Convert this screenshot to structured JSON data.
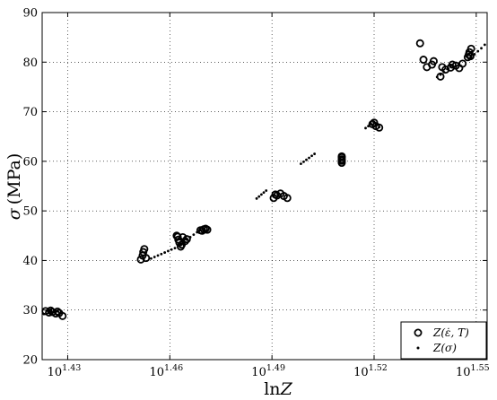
{
  "chart_data": {
    "type": "scatter",
    "title": "",
    "xlabel": "ln Z",
    "xlabel_parts": {
      "prefix": "ln",
      "var": "Z"
    },
    "ylabel": "σ (MPa)",
    "ylabel_parts": {
      "var": "σ",
      "unit": "(MPa)"
    },
    "xscale": "log",
    "xlim_exponent": [
      1.4225,
      1.5532
    ],
    "ylim": [
      20,
      90
    ],
    "x_ticks": [
      {
        "base": "10",
        "exp": "1.43",
        "value": 1.43
      },
      {
        "base": "10",
        "exp": "1.46",
        "value": 1.46
      },
      {
        "base": "10",
        "exp": "1.49",
        "value": 1.49
      },
      {
        "base": "10",
        "exp": "1.52",
        "value": 1.52
      },
      {
        "base": "10",
        "exp": "1.55",
        "value": 1.55
      }
    ],
    "y_ticks": [
      "20",
      "30",
      "40",
      "50",
      "60",
      "70",
      "80",
      "90"
    ],
    "grid": true,
    "legend_position": "bottom-right",
    "series": [
      {
        "name": "Z(ε̇, T)",
        "marker": "open-circle",
        "points": [
          [
            1.4235,
            29.8
          ],
          [
            1.4245,
            29.5
          ],
          [
            1.4255,
            29.6
          ],
          [
            1.4265,
            29.3
          ],
          [
            1.4275,
            29.4
          ],
          [
            1.4285,
            28.8
          ],
          [
            1.425,
            29.9
          ],
          [
            1.427,
            29.7
          ],
          [
            1.4515,
            40.2
          ],
          [
            1.452,
            41.0
          ],
          [
            1.4525,
            42.3
          ],
          [
            1.453,
            40.5
          ],
          [
            1.4522,
            41.7
          ],
          [
            1.462,
            45.0
          ],
          [
            1.4625,
            44.2
          ],
          [
            1.4628,
            43.6
          ],
          [
            1.4632,
            42.8
          ],
          [
            1.4638,
            44.7
          ],
          [
            1.4645,
            43.9
          ],
          [
            1.465,
            44.3
          ],
          [
            1.4623,
            44.8
          ],
          [
            1.4635,
            43.2
          ],
          [
            1.469,
            46.1
          ],
          [
            1.47,
            46.3
          ],
          [
            1.471,
            46.2
          ],
          [
            1.4695,
            46.0
          ],
          [
            1.4705,
            46.4
          ],
          [
            1.4905,
            52.6
          ],
          [
            1.4915,
            53.1
          ],
          [
            1.4925,
            53.5
          ],
          [
            1.4935,
            53.0
          ],
          [
            1.4945,
            52.6
          ],
          [
            1.491,
            53.3
          ],
          [
            1.5105,
            59.7
          ],
          [
            1.5105,
            60.4
          ],
          [
            1.5105,
            61.0
          ],
          [
            1.5105,
            60.8
          ],
          [
            1.5105,
            60.1
          ],
          [
            1.5195,
            67.5
          ],
          [
            1.5205,
            67.1
          ],
          [
            1.5215,
            66.8
          ],
          [
            1.52,
            67.8
          ],
          [
            1.5335,
            83.8
          ],
          [
            1.5345,
            80.5
          ],
          [
            1.5355,
            79.0
          ],
          [
            1.537,
            79.5
          ],
          [
            1.5375,
            80.2
          ],
          [
            1.5395,
            77.1
          ],
          [
            1.54,
            79.0
          ],
          [
            1.541,
            78.5
          ],
          [
            1.543,
            79.5
          ],
          [
            1.544,
            79.3
          ],
          [
            1.545,
            78.8
          ],
          [
            1.546,
            79.7
          ],
          [
            1.5475,
            81.0
          ],
          [
            1.548,
            82.0
          ],
          [
            1.5485,
            82.7
          ],
          [
            1.5478,
            81.5
          ],
          [
            1.5483,
            81.2
          ],
          [
            1.5425,
            78.9
          ]
        ]
      },
      {
        "name": "Z(σ)",
        "marker": "dot",
        "points": [
          [
            1.423,
            29.2
          ],
          [
            1.425,
            29.6
          ],
          [
            1.427,
            29.8
          ],
          [
            1.4545,
            40.4
          ],
          [
            1.4555,
            40.7
          ],
          [
            1.4565,
            41.0
          ],
          [
            1.4575,
            41.3
          ],
          [
            1.4585,
            41.6
          ],
          [
            1.4595,
            41.9
          ],
          [
            1.4605,
            42.2
          ],
          [
            1.4615,
            42.5
          ],
          [
            1.463,
            43.2
          ],
          [
            1.464,
            43.7
          ],
          [
            1.465,
            44.2
          ],
          [
            1.466,
            44.7
          ],
          [
            1.467,
            45.2
          ],
          [
            1.468,
            45.7
          ],
          [
            1.469,
            46.1
          ],
          [
            1.47,
            46.3
          ],
          [
            1.4855,
            52.5
          ],
          [
            1.4862,
            52.9
          ],
          [
            1.4869,
            53.3
          ],
          [
            1.4876,
            53.7
          ],
          [
            1.4883,
            54.1
          ],
          [
            1.4985,
            59.5
          ],
          [
            1.4993,
            59.9
          ],
          [
            1.5001,
            60.3
          ],
          [
            1.5009,
            60.7
          ],
          [
            1.5017,
            61.1
          ],
          [
            1.5025,
            61.5
          ],
          [
            1.5175,
            66.7
          ],
          [
            1.5183,
            67.1
          ],
          [
            1.5191,
            67.5
          ],
          [
            1.5199,
            67.9
          ],
          [
            1.5207,
            67.3
          ],
          [
            1.5215,
            66.9
          ],
          [
            1.5385,
            77.0
          ],
          [
            1.5395,
            77.5
          ],
          [
            1.5405,
            78.0
          ],
          [
            1.5415,
            78.6
          ],
          [
            1.5425,
            79.2
          ],
          [
            1.5485,
            81.0
          ],
          [
            1.5495,
            81.6
          ],
          [
            1.5505,
            82.2
          ],
          [
            1.5515,
            82.8
          ],
          [
            1.5525,
            83.5
          ]
        ]
      }
    ]
  }
}
